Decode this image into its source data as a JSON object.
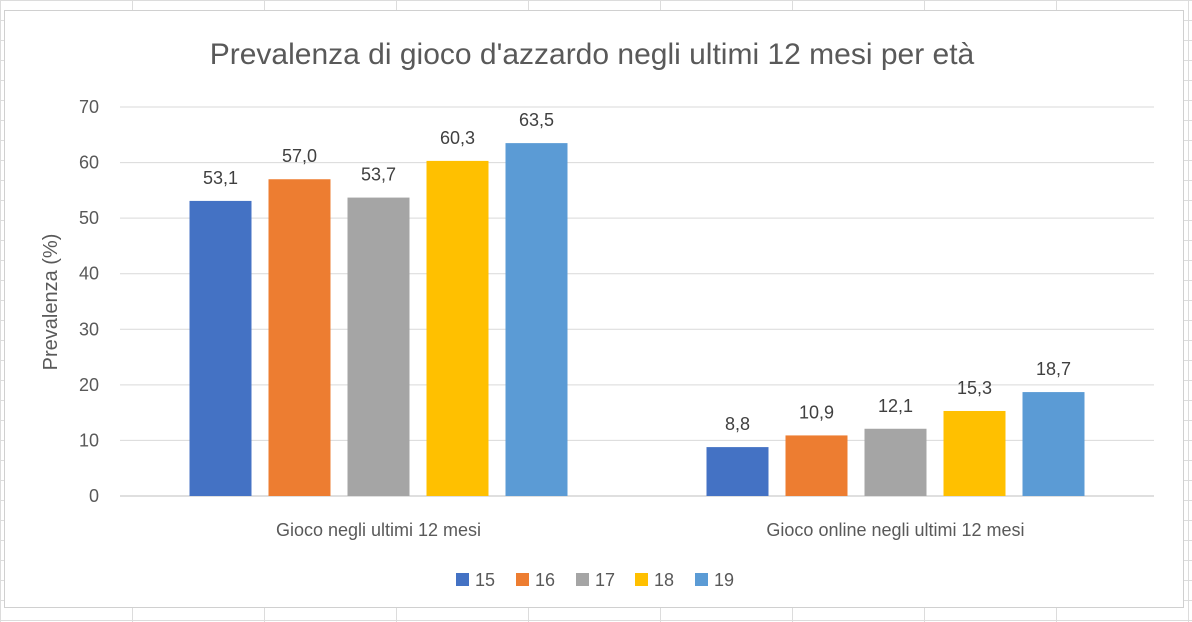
{
  "chart_data": {
    "type": "bar",
    "title": "Prevalenza di gioco d'azzardo negli ultimi 12 mesi per età",
    "xlabel": "",
    "ylabel": "Prevalenza (%)",
    "ylim": [
      0,
      70
    ],
    "yticks": [
      0,
      10,
      20,
      30,
      40,
      50,
      60,
      70
    ],
    "categories": [
      "Gioco negli ultimi 12 mesi",
      "Gioco online negli ultimi 12 mesi"
    ],
    "series": [
      {
        "name": "15",
        "color": "#4472C4",
        "values": [
          53.1,
          8.8
        ],
        "labels": [
          "53,1",
          "8,8"
        ]
      },
      {
        "name": "16",
        "color": "#ED7D31",
        "values": [
          57.0,
          10.9
        ],
        "labels": [
          "57,0",
          "10,9"
        ]
      },
      {
        "name": "17",
        "color": "#A5A5A5",
        "values": [
          53.7,
          12.1
        ],
        "labels": [
          "53,7",
          "12,1"
        ]
      },
      {
        "name": "18",
        "color": "#FFC000",
        "values": [
          60.3,
          15.3
        ],
        "labels": [
          "60,3",
          "15,3"
        ]
      },
      {
        "name": "19",
        "color": "#5B9BD5",
        "values": [
          63.5,
          18.7
        ],
        "labels": [
          "63,5",
          "18,7"
        ]
      }
    ],
    "grid": true,
    "legend": "bottom"
  }
}
